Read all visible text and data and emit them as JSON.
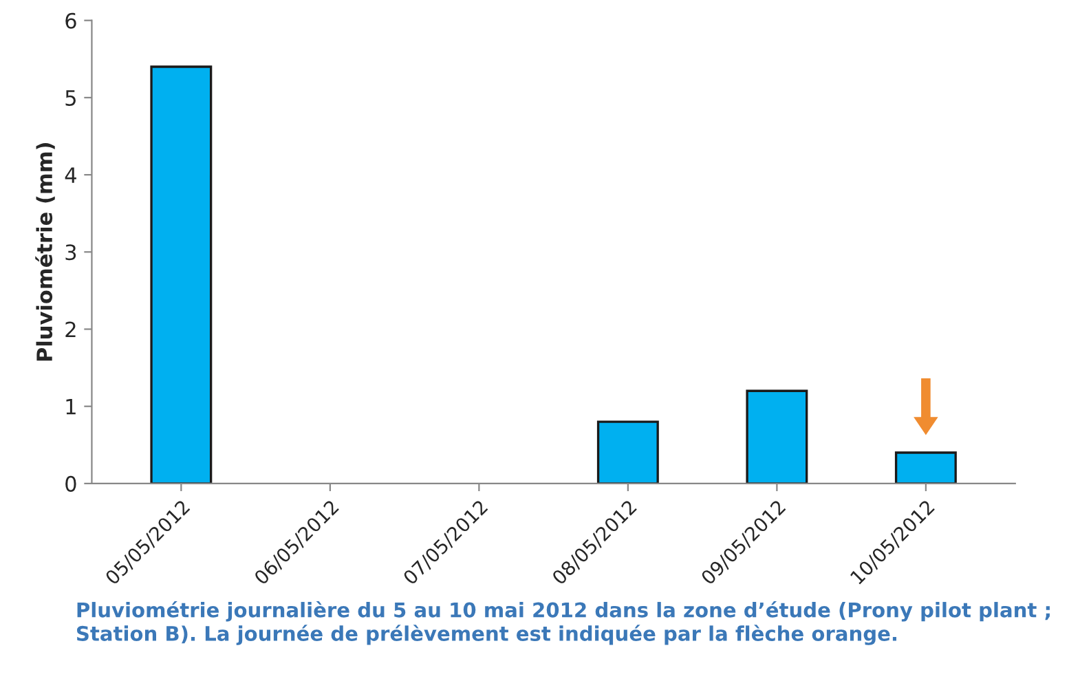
{
  "chart_data": {
    "type": "bar",
    "ylabel": "Pluviométrie (mm)",
    "categories": [
      "05/05/2012",
      "06/05/2012",
      "07/05/2012",
      "08/05/2012",
      "09/05/2012",
      "10/05/2012"
    ],
    "values": [
      5.4,
      0,
      0,
      0.8,
      1.2,
      0.4
    ],
    "color": "#00b0f0",
    "ylim": [
      0,
      6
    ],
    "yticks": [
      0,
      1,
      2,
      3,
      4,
      5,
      6
    ],
    "grid": false,
    "annotations": [
      "Pluviométrie journalière du 5 au 10 mai 2012 dans la zone d’étude (Prony pilot plant ; Station B). La journée de prélèvement est indiquée par la flèche orange."
    ]
  }
}
